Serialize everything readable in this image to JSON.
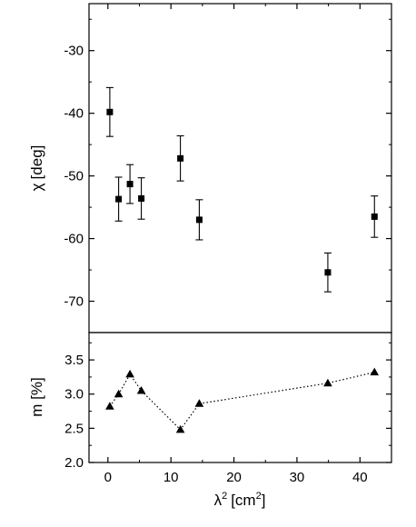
{
  "chart_data": [
    {
      "type": "scatter",
      "panel": "top",
      "ylabel": "χ [deg]",
      "ylabel_symbol": "χ",
      "ylabel_unit": "[deg]",
      "xlim": [
        -3,
        45
      ],
      "ylim": [
        -75,
        -22.5
      ],
      "yticks": [
        -30,
        -40,
        -50,
        -60,
        -70
      ],
      "ytick_labels": [
        "-30",
        "-40",
        "-50",
        "-60",
        "-70"
      ],
      "marker": "square",
      "error_bars": true,
      "series": [
        {
          "points": [
            {
              "x": 0.3,
              "y": -39.8,
              "err": 3.9
            },
            {
              "x": 1.7,
              "y": -53.7,
              "err": 3.5
            },
            {
              "x": 3.5,
              "y": -51.3,
              "err": 3.1
            },
            {
              "x": 5.3,
              "y": -53.6,
              "err": 3.3
            },
            {
              "x": 11.5,
              "y": -47.2,
              "err": 3.6
            },
            {
              "x": 14.5,
              "y": -57.0,
              "err": 3.2
            },
            {
              "x": 34.9,
              "y": -65.4,
              "err": 3.1
            },
            {
              "x": 42.3,
              "y": -56.5,
              "err": 3.3
            }
          ]
        }
      ]
    },
    {
      "type": "line",
      "panel": "bottom",
      "ylabel": "m [%]",
      "xlabel": "λ² [cm²]",
      "xlabel_base": "λ",
      "xlabel_sup": "2",
      "xlabel_unit": "[cm",
      "xlabel_unit_sup": "2",
      "xlabel_close": "]",
      "xlim": [
        -3,
        45
      ],
      "ylim": [
        2.0,
        3.9
      ],
      "xticks": [
        0,
        10,
        20,
        30,
        40
      ],
      "xtick_labels": [
        "0",
        "10",
        "20",
        "30",
        "40"
      ],
      "yticks": [
        2.0,
        2.5,
        3.0,
        3.5
      ],
      "ytick_labels": [
        "2.0",
        "2.5",
        "3.0",
        "3.5"
      ],
      "marker": "triangle",
      "line_style": "dotted",
      "series": [
        {
          "points": [
            {
              "x": 0.3,
              "y": 2.82
            },
            {
              "x": 1.7,
              "y": 3.0
            },
            {
              "x": 3.5,
              "y": 3.29
            },
            {
              "x": 5.3,
              "y": 3.05
            },
            {
              "x": 11.5,
              "y": 2.48
            },
            {
              "x": 14.5,
              "y": 2.86
            },
            {
              "x": 34.9,
              "y": 3.16
            },
            {
              "x": 42.3,
              "y": 3.32
            }
          ]
        }
      ]
    }
  ]
}
